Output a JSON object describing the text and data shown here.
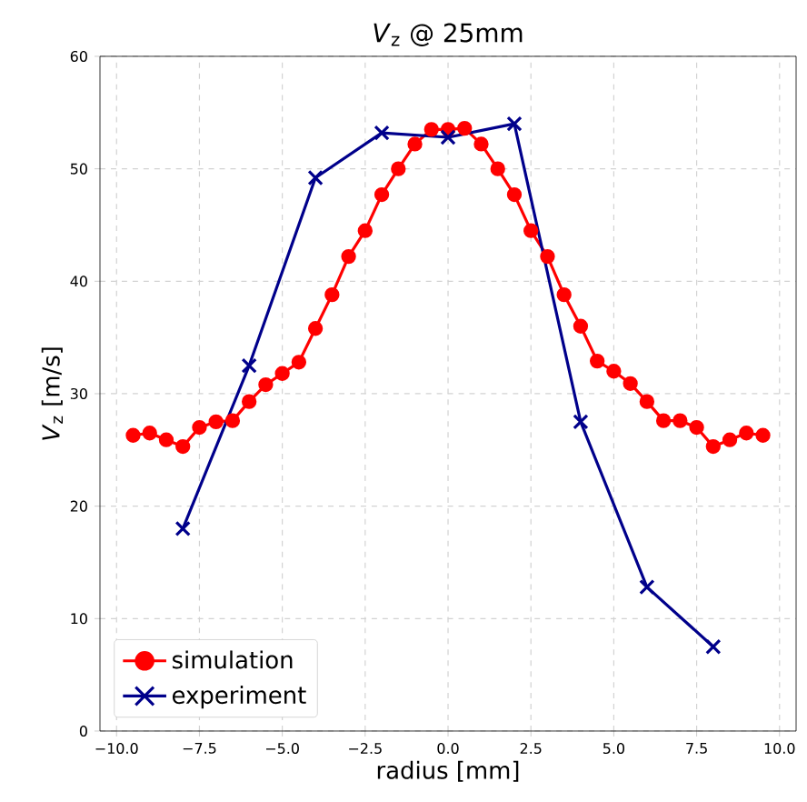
{
  "chart_data": {
    "type": "line",
    "title": "*V*$_{z}$ @ 25mm",
    "xlabel": "radius [mm]",
    "ylabel": "*V*$_{z}$ [m/s]",
    "series": [
      {
        "name": "simulation",
        "color": "#ff0000",
        "marker": "circle",
        "line_style": "solid",
        "x": [
          -9.5,
          -9,
          -8.5,
          -8,
          -7.5,
          -7,
          -6.5,
          -6,
          -5.5,
          -5,
          -4.5,
          -4,
          -3.5,
          -3,
          -2.5,
          -2,
          -1.5,
          -1,
          -0.5,
          0,
          0.5,
          1,
          1.5,
          2,
          2.5,
          3,
          3.5,
          4,
          4.5,
          5,
          5.5,
          6,
          6.5,
          7,
          7.5,
          8,
          8.5,
          9,
          9.5
        ],
        "values": [
          26.3,
          26.5,
          25.9,
          25.3,
          27,
          27.5,
          27.6,
          29.3,
          30.8,
          31.8,
          32.8,
          35.8,
          38.8,
          42.2,
          44.5,
          47.7,
          50,
          52.2,
          53.5,
          53.5,
          53.6,
          52.2,
          50,
          47.7,
          44.5,
          42.2,
          38.8,
          36,
          32.9,
          32,
          30.9,
          29.3,
          27.6,
          27.6,
          27,
          25.3,
          25.9,
          26.5,
          26.3
        ]
      },
      {
        "name": "experiment",
        "color": "#00008b",
        "marker": "cross",
        "line_style": "solid",
        "x": [
          -8,
          -6,
          -4,
          -2,
          0,
          2,
          4,
          6,
          8
        ],
        "values": [
          18,
          32.5,
          49.2,
          53.2,
          52.8,
          54,
          27.5,
          12.8,
          7.5
        ]
      }
    ],
    "xlim": [
      -10.5,
      10.5
    ],
    "ylim": [
      0,
      60
    ],
    "xticks": [
      {
        "value": -10,
        "label": "−10.0"
      },
      {
        "value": -7.5,
        "label": "−7.5"
      },
      {
        "value": -5,
        "label": "−5.0"
      },
      {
        "value": -2.5,
        "label": "−2.5"
      },
      {
        "value": 0,
        "label": "0.0"
      },
      {
        "value": 2.5,
        "label": "2.5"
      },
      {
        "value": 5,
        "label": "5.0"
      },
      {
        "value": 7.5,
        "label": "7.5"
      },
      {
        "value": 10,
        "label": "10.0"
      }
    ],
    "yticks": [
      0,
      10,
      20,
      30,
      40,
      50,
      60
    ],
    "grid": true,
    "legend": "bottom left"
  }
}
